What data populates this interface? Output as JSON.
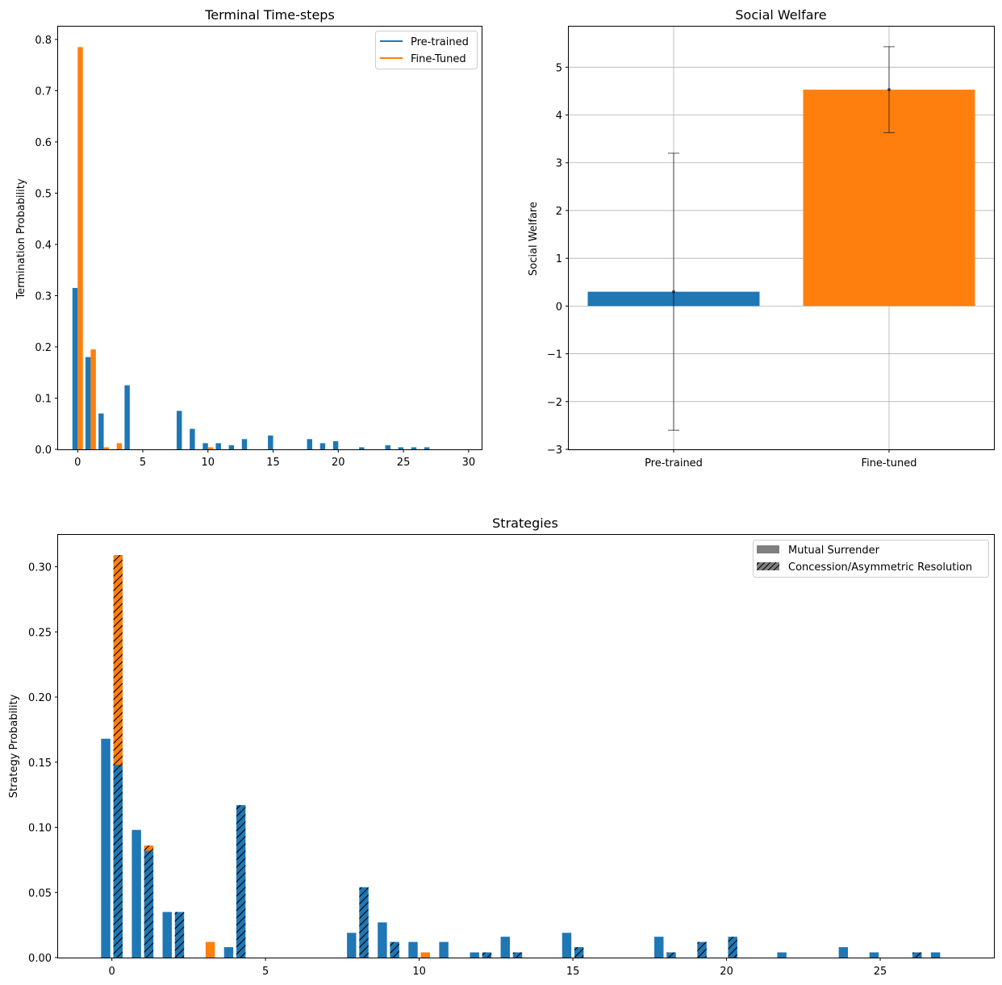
{
  "chart_data": [
    {
      "type": "bar",
      "title": "Terminal Time-steps",
      "xlabel": "",
      "ylabel": "Termination Probability",
      "xlim": [
        -1.5,
        31.0
      ],
      "ylim": [
        0,
        0.825
      ],
      "xticks": [
        0,
        5,
        10,
        15,
        20,
        25,
        30
      ],
      "yticks": [
        0.0,
        0.1,
        0.2,
        0.3,
        0.4,
        0.5,
        0.6,
        0.7,
        0.8
      ],
      "legend": {
        "position": "top-right",
        "entries": [
          "Pre-trained",
          "Fine-Tuned"
        ]
      },
      "series": [
        {
          "name": "Pre-trained",
          "color": "#1f77b4",
          "x": [
            0,
            1,
            2,
            4,
            8,
            9,
            10,
            11,
            12,
            13,
            15,
            18,
            19,
            20,
            22,
            24,
            25,
            26,
            27
          ],
          "values": [
            0.315,
            0.18,
            0.07,
            0.125,
            0.075,
            0.04,
            0.012,
            0.012,
            0.008,
            0.02,
            0.027,
            0.02,
            0.012,
            0.016,
            0.004,
            0.008,
            0.004,
            0.004,
            0.004
          ]
        },
        {
          "name": "Fine-Tuned",
          "color": "#ff7f0e",
          "x": [
            0,
            1,
            2,
            3,
            10
          ],
          "values": [
            0.785,
            0.195,
            0.004,
            0.012,
            0.004
          ]
        }
      ]
    },
    {
      "type": "bar",
      "title": "Social Welfare",
      "xlabel": "",
      "ylabel": "Social Welfare",
      "ylim": [
        -3,
        5.85
      ],
      "yticks": [
        -3,
        -2,
        -1,
        0,
        1,
        2,
        3,
        4,
        5
      ],
      "ytick_labels": [
        "−3",
        "−2",
        "−1",
        "0",
        "1",
        "2",
        "3",
        "4",
        "5"
      ],
      "grid": true,
      "categories": [
        "Pre-trained",
        "Fine-tuned"
      ],
      "values": [
        0.3,
        4.53
      ],
      "error_low": [
        -2.6,
        3.63
      ],
      "error_high": [
        3.2,
        5.43
      ],
      "colors": [
        "#1f77b4",
        "#ff7f0e"
      ]
    },
    {
      "type": "bar",
      "title": "Strategies",
      "xlabel": "",
      "ylabel": "Strategy Probability",
      "xlim": [
        -1.75,
        28.7
      ],
      "ylim": [
        0,
        0.3245
      ],
      "xticks": [
        0,
        5,
        10,
        15,
        20,
        25
      ],
      "yticks": [
        0.0,
        0.05,
        0.1,
        0.15,
        0.2,
        0.25,
        0.3
      ],
      "ytick_labels": [
        "0.00",
        "0.05",
        "0.10",
        "0.15",
        "0.20",
        "0.25",
        "0.30"
      ],
      "legend": {
        "position": "top-right",
        "entries": [
          "Mutual Surrender",
          "Concession/Asymmetric Resolution"
        ]
      },
      "series": [
        {
          "name": "Pre-trained Mutual Surrender",
          "color": "#1f77b4",
          "hatch": false,
          "x": [
            0,
            1,
            2,
            4,
            8,
            9,
            10,
            11,
            12,
            13,
            15,
            18,
            22,
            24,
            25,
            27
          ],
          "values": [
            0.168,
            0.098,
            0.035,
            0.008,
            0.019,
            0.027,
            0.012,
            0.012,
            0.004,
            0.016,
            0.019,
            0.016,
            0.004,
            0.008,
            0.004,
            0.004
          ],
          "offset": -0.2
        },
        {
          "name": "Pre-trained Concession/Asymmetric Resolution",
          "color": "#1f77b4",
          "hatch": true,
          "x": [
            0,
            1,
            2,
            4,
            8,
            9,
            12,
            13,
            15,
            18,
            19,
            20,
            26
          ],
          "values": [
            0.148,
            0.082,
            0.035,
            0.117,
            0.054,
            0.012,
            0.004,
            0.004,
            0.008,
            0.004,
            0.012,
            0.016,
            0.004
          ],
          "offset": 0.2
        },
        {
          "name": "Fine-tuned Mutual Surrender",
          "color": "#ff7f0e",
          "hatch": false,
          "x": [
            3,
            10
          ],
          "values": [
            0.012,
            0.004
          ],
          "offset": 0.2
        },
        {
          "name": "Fine-tuned Concession/Asymmetric Resolution",
          "color": "#ff7f0e",
          "hatch": true,
          "x": [
            0,
            1
          ],
          "values": [
            0.309,
            0.086
          ],
          "offset": 0.2,
          "drawn_behind": true
        }
      ]
    }
  ]
}
